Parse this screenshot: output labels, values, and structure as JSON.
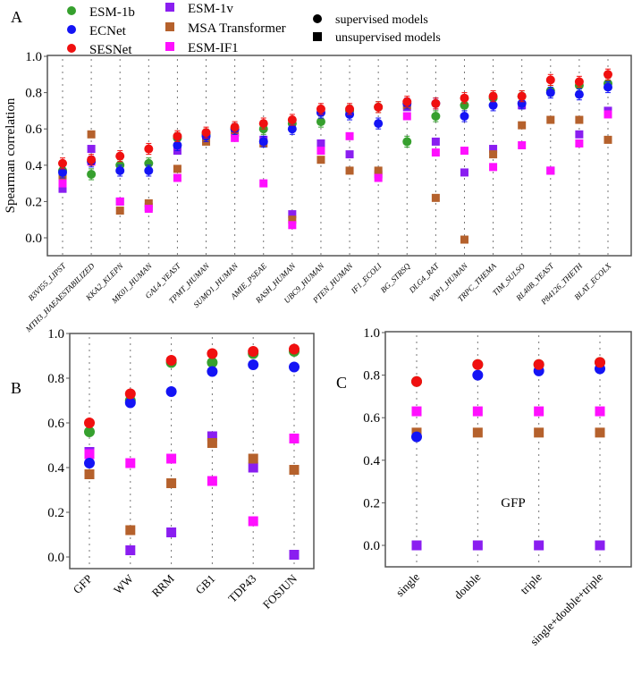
{
  "legend": {
    "items": [
      {
        "name": "ESM-1b",
        "color": "#36a02e",
        "marker": "circle"
      },
      {
        "name": "ECNet",
        "color": "#1414f5",
        "marker": "circle"
      },
      {
        "name": "SESNet",
        "color": "#f01010",
        "marker": "circle"
      },
      {
        "name": "ESM-1v",
        "color": "#8a1ef0",
        "marker": "square"
      },
      {
        "name": "MSA Transformer",
        "color": "#b5612c",
        "marker": "square"
      },
      {
        "name": "ESM-IF1",
        "color": "#ff10ff",
        "marker": "square"
      }
    ],
    "marker_types": [
      "supervised models",
      "unsupervised models"
    ]
  },
  "chart_data": [
    {
      "panel": "A",
      "type": "scatter",
      "ylabel": "Spearman correlation",
      "ylim": [
        -0.1,
        1.0
      ],
      "yticks": [
        "0.0",
        "0.2",
        "0.4",
        "0.6",
        "0.8",
        "1.0"
      ],
      "grid": "vertical dotted",
      "approx_error": 0.03,
      "categories": [
        "B3VI55_LIPST",
        "MTH3_HAEAESTABILIZED",
        "KKA2_KLEPN",
        "MK01_HUMAN",
        "GAL4_YEAST",
        "TPMT_HUMAN",
        "SUMO1_HUMAN",
        "AMIE_PSEAE",
        "RASH_HUMAN",
        "UBC9_HUMAN",
        "PTEN_HUMAN",
        "IF1_ECOLI",
        "BG_STRSQ",
        "DLG4_RAT",
        "YAP1_HUMAN",
        "TRPC_THEMA",
        "TIM_SULSO",
        "RL40B_YEAST",
        "P84126_THETH",
        "BLAT_ECOLX"
      ],
      "series": [
        {
          "name": "ESM-1v",
          "values": [
            0.27,
            0.49,
            0.2,
            0.17,
            0.48,
            0.55,
            0.58,
            0.54,
            0.13,
            0.52,
            0.46,
            0.35,
            0.72,
            0.53,
            0.36,
            0.49,
            0.73,
            0.37,
            0.57,
            0.7
          ]
        },
        {
          "name": "MSA Transformer",
          "values": [
            0.33,
            0.57,
            0.15,
            0.19,
            0.38,
            0.53,
            0.58,
            0.52,
            0.1,
            0.43,
            0.37,
            0.37,
            0.73,
            0.22,
            -0.01,
            0.46,
            0.62,
            0.65,
            0.65,
            0.54
          ]
        },
        {
          "name": "ESM-IF1",
          "values": [
            0.3,
            0.42,
            0.2,
            0.16,
            0.33,
            0.57,
            0.55,
            0.3,
            0.07,
            0.48,
            0.56,
            0.33,
            0.67,
            0.47,
            0.48,
            0.39,
            0.51,
            0.37,
            0.52,
            0.68
          ]
        },
        {
          "name": "ESM-1b",
          "values": [
            0.37,
            0.35,
            0.4,
            0.41,
            0.55,
            0.57,
            0.6,
            0.6,
            0.63,
            0.64,
            0.7,
            0.72,
            0.53,
            0.67,
            0.73,
            0.77,
            0.78,
            0.81,
            0.84,
            0.85
          ]
        },
        {
          "name": "ECNet",
          "values": [
            0.36,
            0.42,
            0.37,
            0.37,
            0.51,
            0.56,
            0.6,
            0.53,
            0.6,
            0.69,
            0.68,
            0.63,
            0.74,
            0.74,
            0.67,
            0.73,
            0.74,
            0.8,
            0.79,
            0.83
          ]
        },
        {
          "name": "SESNet",
          "values": [
            0.41,
            0.43,
            0.45,
            0.49,
            0.56,
            0.58,
            0.61,
            0.63,
            0.65,
            0.71,
            0.71,
            0.72,
            0.75,
            0.74,
            0.77,
            0.78,
            0.78,
            0.87,
            0.86,
            0.9
          ]
        }
      ]
    },
    {
      "panel": "B",
      "type": "scatter",
      "ylim": [
        -0.05,
        1.0
      ],
      "yticks": [
        "0.0",
        "0.2",
        "0.4",
        "0.6",
        "0.8",
        "1.0"
      ],
      "grid": "vertical dotted",
      "categories": [
        "GFP",
        "WW",
        "RRM",
        "GB1",
        "TDP43",
        "FOSJUN"
      ],
      "series": [
        {
          "name": "ESM-1v",
          "values": [
            0.47,
            0.03,
            0.11,
            0.54,
            0.4,
            0.01
          ]
        },
        {
          "name": "MSA Transformer",
          "values": [
            0.37,
            0.12,
            0.33,
            0.51,
            0.44,
            0.39
          ]
        },
        {
          "name": "ESM-IF1",
          "values": [
            0.46,
            0.42,
            0.44,
            0.34,
            0.16,
            0.53
          ]
        },
        {
          "name": "ESM-1b",
          "values": [
            0.56,
            0.7,
            0.87,
            0.87,
            0.91,
            0.92
          ]
        },
        {
          "name": "ECNet",
          "values": [
            0.42,
            0.69,
            0.74,
            0.83,
            0.86,
            0.85
          ]
        },
        {
          "name": "SESNet",
          "values": [
            0.6,
            0.73,
            0.88,
            0.91,
            0.92,
            0.93
          ]
        }
      ]
    },
    {
      "panel": "C",
      "type": "scatter",
      "ylim": [
        -0.1,
        1.0
      ],
      "annotation": "GFP",
      "yticks": [
        "0.0",
        "0.2",
        "0.4",
        "0.6",
        "0.8",
        "1.0"
      ],
      "grid": "vertical dotted",
      "categories": [
        "single",
        "double",
        "triple",
        "single+double+triple"
      ],
      "series": [
        {
          "name": "ESM-1v",
          "values": [
            0.0,
            0.0,
            0.0,
            0.0
          ]
        },
        {
          "name": "MSA Transformer",
          "values": [
            0.53,
            0.53,
            0.53,
            0.53
          ]
        },
        {
          "name": "ESM-IF1",
          "values": [
            0.63,
            0.63,
            0.63,
            0.63
          ]
        },
        {
          "name": "ESM-1b",
          "values": [
            0.77,
            0.85,
            0.85,
            0.86
          ]
        },
        {
          "name": "ECNet",
          "values": [
            0.51,
            0.8,
            0.82,
            0.83
          ]
        },
        {
          "name": "SESNet",
          "values": [
            0.77,
            0.85,
            0.85,
            0.86
          ]
        }
      ]
    }
  ]
}
